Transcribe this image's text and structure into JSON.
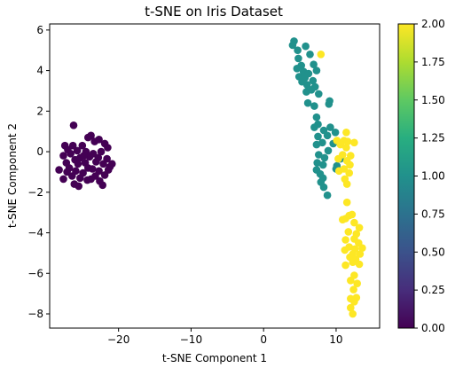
{
  "chart_data": {
    "type": "scatter",
    "title": "t-SNE on Iris Dataset",
    "xlabel": "t-SNE Component 1",
    "ylabel": "t-SNE Component 2",
    "xlim": [
      -29.5,
      16
    ],
    "ylim": [
      -8.7,
      6.3
    ],
    "xticks": [
      -20,
      -10,
      0,
      10
    ],
    "yticks": [
      -8,
      -6,
      -4,
      -2,
      0,
      2,
      4,
      6
    ],
    "grid": false,
    "colorbar": {
      "min": 0,
      "max": 2,
      "ticks": [
        "0.00",
        "0.25",
        "0.50",
        "0.75",
        "1.00",
        "1.25",
        "1.50",
        "1.75",
        "2.00"
      ],
      "colors": [
        "#440154",
        "#3b528b",
        "#21918c",
        "#5ec962",
        "#fde725"
      ]
    },
    "series": [
      {
        "color_value": 0,
        "points": [
          [
            -26.2,
            1.3
          ],
          [
            -23.8,
            0.8
          ],
          [
            -24.2,
            0.7
          ],
          [
            -22.7,
            0.6
          ],
          [
            -23.3,
            0.5
          ],
          [
            -21.9,
            0.4
          ],
          [
            -27.4,
            0.3
          ],
          [
            -26.3,
            0.3
          ],
          [
            -25.0,
            0.3
          ],
          [
            -21.5,
            0.2
          ],
          [
            -27.0,
            0.1
          ],
          [
            -25.7,
            0.05
          ],
          [
            -24.5,
            0.0
          ],
          [
            -22.4,
            0.0
          ],
          [
            -26.6,
            -0.1
          ],
          [
            -23.5,
            -0.1
          ],
          [
            -27.6,
            -0.2
          ],
          [
            -25.3,
            -0.3
          ],
          [
            -24.0,
            -0.25
          ],
          [
            -22.8,
            -0.3
          ],
          [
            -21.6,
            -0.35
          ],
          [
            -26.0,
            -0.4
          ],
          [
            -23.1,
            -0.5
          ],
          [
            -27.2,
            -0.55
          ],
          [
            -25.6,
            -0.6
          ],
          [
            -24.6,
            -0.55
          ],
          [
            -22.1,
            -0.6
          ],
          [
            -20.9,
            -0.6
          ],
          [
            -26.8,
            -0.8
          ],
          [
            -24.2,
            -0.8
          ],
          [
            -23.6,
            -0.85
          ],
          [
            -21.4,
            -0.9
          ],
          [
            -25.9,
            -0.95
          ],
          [
            -22.7,
            -0.95
          ],
          [
            -28.2,
            -0.9
          ],
          [
            -27.1,
            -1.0
          ],
          [
            -24.9,
            -1.05
          ],
          [
            -26.4,
            -1.2
          ],
          [
            -23.2,
            -1.2
          ],
          [
            -21.9,
            -1.15
          ],
          [
            -25.3,
            -1.3
          ],
          [
            -27.6,
            -1.35
          ],
          [
            -24.3,
            -1.4
          ],
          [
            -22.6,
            -1.45
          ],
          [
            -26.1,
            -1.6
          ],
          [
            -22.2,
            -1.65
          ],
          [
            -25.5,
            -1.7
          ],
          [
            -23.8,
            -1.35
          ],
          [
            -24.8,
            -0.2
          ],
          [
            -21.2,
            -0.75
          ]
        ]
      },
      {
        "color_value": 1,
        "points": [
          [
            4.2,
            5.45
          ],
          [
            4.0,
            5.25
          ],
          [
            4.7,
            5.0
          ],
          [
            5.8,
            5.2
          ],
          [
            4.8,
            4.6
          ],
          [
            6.4,
            4.8
          ],
          [
            5.2,
            4.25
          ],
          [
            6.9,
            4.3
          ],
          [
            4.6,
            4.1
          ],
          [
            5.5,
            3.95
          ],
          [
            6.2,
            3.85
          ],
          [
            7.3,
            4.0
          ],
          [
            4.9,
            3.7
          ],
          [
            5.7,
            3.65
          ],
          [
            6.8,
            3.5
          ],
          [
            5.3,
            3.45
          ],
          [
            6.0,
            3.3
          ],
          [
            7.1,
            3.2
          ],
          [
            5.9,
            2.95
          ],
          [
            7.6,
            2.85
          ],
          [
            6.6,
            3.05
          ],
          [
            9.1,
            2.5
          ],
          [
            9.0,
            2.35
          ],
          [
            6.1,
            2.4
          ],
          [
            7.0,
            2.25
          ],
          [
            7.3,
            1.7
          ],
          [
            7.5,
            1.35
          ],
          [
            7.0,
            1.2
          ],
          [
            8.3,
            1.05
          ],
          [
            9.2,
            1.2
          ],
          [
            9.9,
            0.95
          ],
          [
            8.8,
            0.8
          ],
          [
            7.5,
            0.75
          ],
          [
            8.1,
            0.45
          ],
          [
            9.6,
            0.4
          ],
          [
            7.3,
            0.35
          ],
          [
            8.9,
            0.05
          ],
          [
            7.6,
            -0.15
          ],
          [
            8.4,
            -0.3
          ],
          [
            10.6,
            -0.35
          ],
          [
            7.4,
            -0.55
          ],
          [
            8.2,
            -0.65
          ],
          [
            10.1,
            -0.7
          ],
          [
            7.3,
            -0.9
          ],
          [
            7.8,
            -1.1
          ],
          [
            8.2,
            -1.3
          ],
          [
            7.9,
            -1.5
          ],
          [
            8.3,
            -1.75
          ],
          [
            8.8,
            -2.15
          ],
          [
            10.0,
            -0.85
          ]
        ]
      },
      {
        "color_value": 2,
        "points": [
          [
            7.9,
            4.8
          ],
          [
            11.4,
            0.95
          ],
          [
            10.1,
            0.55
          ],
          [
            11.1,
            0.55
          ],
          [
            11.6,
            0.5
          ],
          [
            12.5,
            0.45
          ],
          [
            10.6,
            0.35
          ],
          [
            11.4,
            0.2
          ],
          [
            10.9,
            -0.15
          ],
          [
            12.0,
            -0.2
          ],
          [
            10.3,
            -0.35
          ],
          [
            11.5,
            -0.45
          ],
          [
            11.9,
            -0.65
          ],
          [
            11.1,
            -0.85
          ],
          [
            10.4,
            -0.95
          ],
          [
            11.8,
            -1.05
          ],
          [
            11.2,
            -1.35
          ],
          [
            11.5,
            -1.6
          ],
          [
            11.5,
            -2.5
          ],
          [
            12.2,
            -3.1
          ],
          [
            11.3,
            -3.3
          ],
          [
            11.8,
            -3.15
          ],
          [
            12.5,
            -3.5
          ],
          [
            10.9,
            -3.35
          ],
          [
            13.2,
            -3.75
          ],
          [
            11.7,
            -3.95
          ],
          [
            12.8,
            -4.05
          ],
          [
            11.3,
            -4.35
          ],
          [
            12.5,
            -4.3
          ],
          [
            13.1,
            -4.5
          ],
          [
            11.8,
            -4.7
          ],
          [
            12.6,
            -4.8
          ],
          [
            13.6,
            -4.75
          ],
          [
            11.2,
            -4.85
          ],
          [
            12.3,
            -5.05
          ],
          [
            13.3,
            -5.05
          ],
          [
            11.9,
            -5.2
          ],
          [
            12.7,
            -5.3
          ],
          [
            12.3,
            -5.45
          ],
          [
            13.2,
            -5.55
          ],
          [
            11.3,
            -5.6
          ],
          [
            12.5,
            -6.1
          ],
          [
            12.0,
            -6.35
          ],
          [
            12.9,
            -6.5
          ],
          [
            12.4,
            -6.8
          ],
          [
            12.8,
            -7.2
          ],
          [
            12.0,
            -7.25
          ],
          [
            12.5,
            -7.4
          ],
          [
            12.0,
            -7.7
          ],
          [
            12.3,
            -8.0
          ]
        ]
      }
    ]
  }
}
